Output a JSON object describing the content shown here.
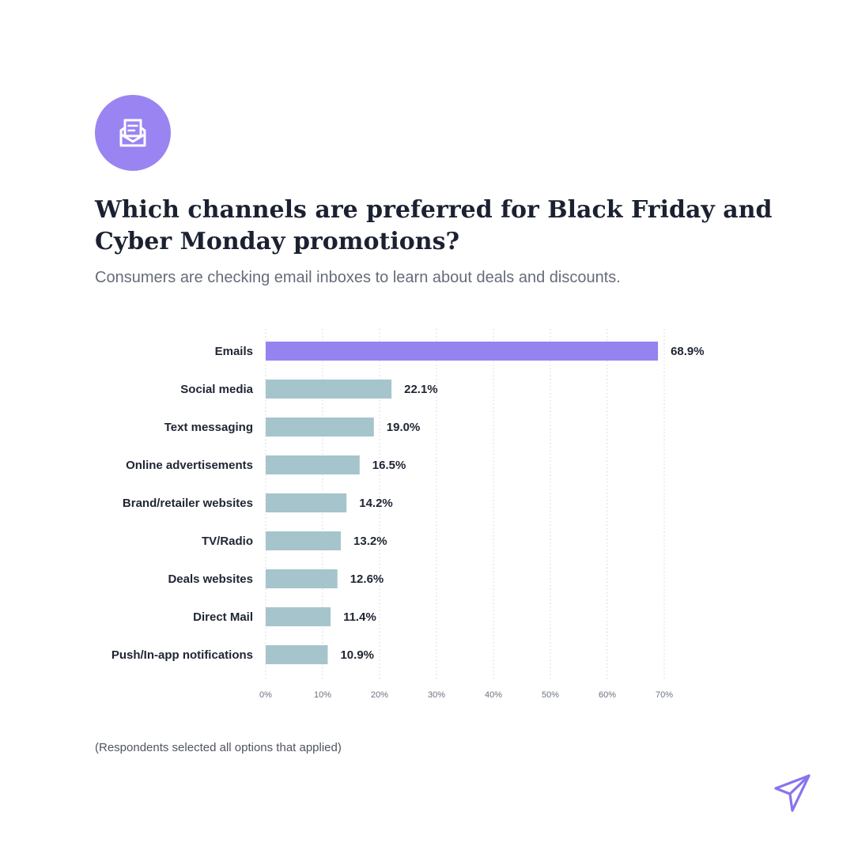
{
  "header": {
    "icon": "envelope-letter-icon",
    "title": "Which channels are preferred for Black Friday and Cyber Monday promotions?",
    "subtitle": "Consumers are checking email inboxes to learn about deals and discounts."
  },
  "chart_data": {
    "type": "bar",
    "orientation": "horizontal",
    "categories": [
      "Emails",
      "Social media",
      "Text messaging",
      "Online advertisements",
      "Brand/retailer websites",
      "TV/Radio",
      "Deals websites",
      "Direct Mail",
      "Push/In-app notifications"
    ],
    "values": [
      68.9,
      22.1,
      19.0,
      16.5,
      14.2,
      13.2,
      12.6,
      11.4,
      10.9
    ],
    "value_labels": [
      "68.9%",
      "22.1%",
      "19.0%",
      "16.5%",
      "14.2%",
      "13.2%",
      "12.6%",
      "11.4%",
      "10.9%"
    ],
    "xlim": [
      0,
      70
    ],
    "x_ticks": [
      0,
      10,
      20,
      30,
      40,
      50,
      60,
      70
    ],
    "x_tick_labels": [
      "0%",
      "10%",
      "20%",
      "30%",
      "40%",
      "50%",
      "60%",
      "70%"
    ],
    "grid": "vertical dotted",
    "colors": {
      "highlight": "#9583f0",
      "default": "#a6c4cc"
    }
  },
  "footer": {
    "note": "(Respondents selected all options that applied)",
    "logo": "paper-plane-icon",
    "logo_color": "#8a72ee"
  }
}
